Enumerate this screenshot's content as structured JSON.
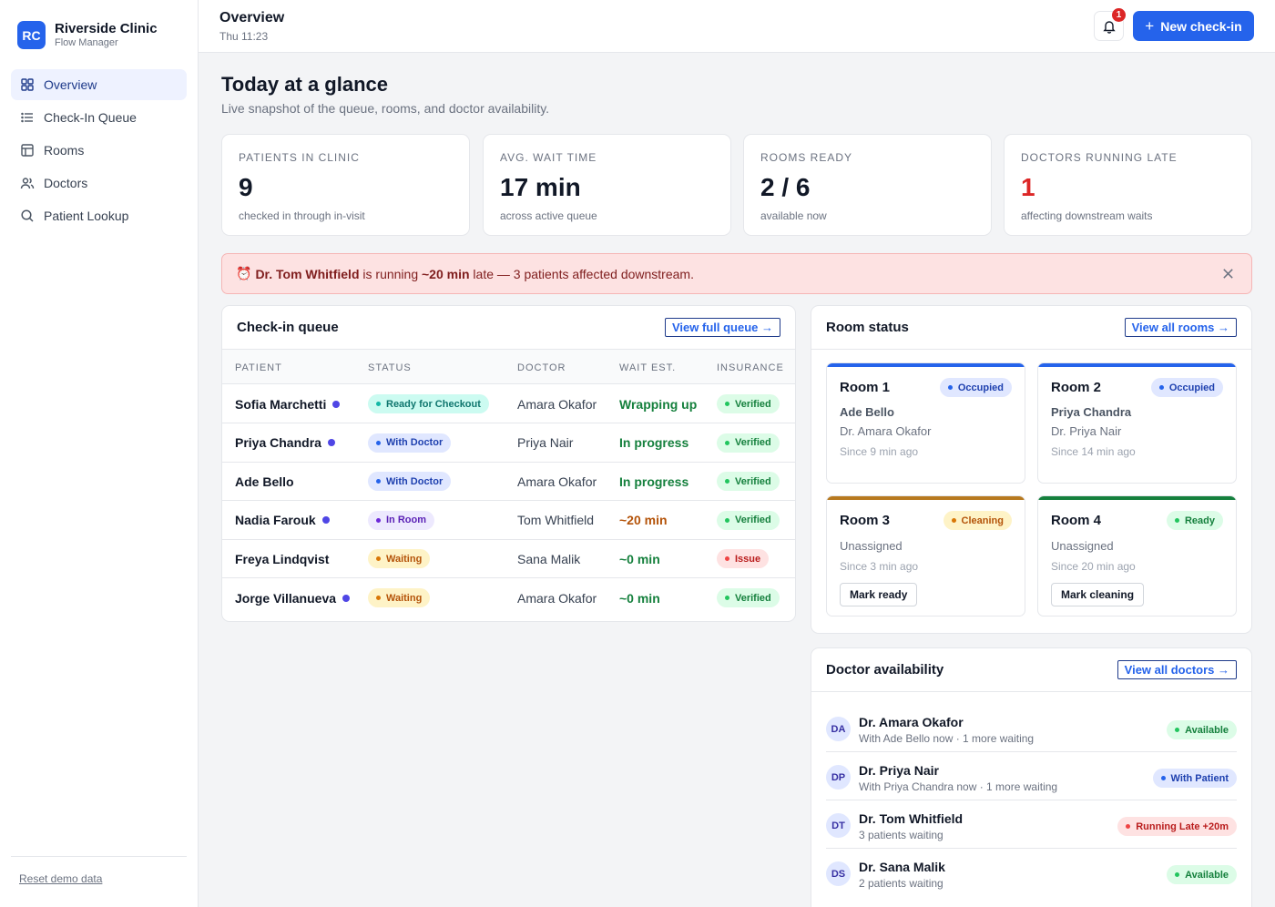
{
  "brand": {
    "initials": "RC",
    "name": "Riverside Clinic",
    "subtitle": "Flow Manager"
  },
  "nav": [
    {
      "label": "Overview",
      "icon": "grid-icon",
      "active": true
    },
    {
      "label": "Check-In Queue",
      "icon": "list-icon",
      "active": false
    },
    {
      "label": "Rooms",
      "icon": "layout-icon",
      "active": false
    },
    {
      "label": "Doctors",
      "icon": "users-icon",
      "active": false
    },
    {
      "label": "Patient Lookup",
      "icon": "search-icon",
      "active": false
    }
  ],
  "footer": {
    "reset_label": "Reset demo data"
  },
  "header": {
    "title": "Overview",
    "time": "Thu 11:23",
    "notification_count": "1",
    "new_checkin_label": "New check-in"
  },
  "page": {
    "title": "Today at a glance",
    "subtitle": "Live snapshot of the queue, rooms, and doctor availability."
  },
  "stats": [
    {
      "label": "Patients in clinic",
      "value": "9",
      "note": "checked in through in-visit"
    },
    {
      "label": "Avg. wait time",
      "value": "17 min",
      "note": "across active queue"
    },
    {
      "label": "Rooms ready",
      "value": "2 / 6",
      "note": "available now"
    },
    {
      "label": "Doctors running late",
      "value": "1",
      "note": "affecting downstream waits"
    }
  ],
  "alert": {
    "icon": "⏰",
    "doctor": "Dr. Tom Whitfield",
    "mid": " is running ",
    "delay": "~20 min",
    "rest": " late — 3 patients affected downstream."
  },
  "queue": {
    "title": "Check-in queue",
    "link": "View full queue →",
    "columns": [
      "PATIENT",
      "STATUS",
      "DOCTOR",
      "WAIT EST.",
      "INSURANCE"
    ],
    "rows": [
      {
        "patient": "Sofia Marchetti",
        "unread": true,
        "status": "Ready for Checkout",
        "status_kind": "teal",
        "doctor": "Amara Okafor",
        "wait": "Wrapping up",
        "wait_kind": "green",
        "insurance": "Verified",
        "ins_kind": "green"
      },
      {
        "patient": "Priya Chandra",
        "unread": true,
        "status": "With Doctor",
        "status_kind": "blue",
        "doctor": "Priya Nair",
        "wait": "In progress",
        "wait_kind": "green",
        "insurance": "Verified",
        "ins_kind": "green"
      },
      {
        "patient": "Ade Bello",
        "unread": false,
        "status": "With Doctor",
        "status_kind": "blue",
        "doctor": "Amara Okafor",
        "wait": "In progress",
        "wait_kind": "green",
        "insurance": "Verified",
        "ins_kind": "green"
      },
      {
        "patient": "Nadia Farouk",
        "unread": true,
        "status": "In Room",
        "status_kind": "indigo",
        "doctor": "Tom Whitfield",
        "wait": "~20 min",
        "wait_kind": "amber",
        "insurance": "Verified",
        "ins_kind": "green"
      },
      {
        "patient": "Freya Lindqvist",
        "unread": false,
        "status": "Waiting",
        "status_kind": "amber",
        "doctor": "Sana Malik",
        "wait": "~0 min",
        "wait_kind": "green",
        "insurance": "Issue",
        "ins_kind": "red"
      },
      {
        "patient": "Jorge Villanueva",
        "unread": true,
        "status": "Waiting",
        "status_kind": "amber",
        "doctor": "Amara Okafor",
        "wait": "~0 min",
        "wait_kind": "green",
        "insurance": "Verified",
        "ins_kind": "green"
      }
    ]
  },
  "rooms": {
    "title": "Room status",
    "link": "View all rooms →",
    "items": [
      {
        "name": "Room 1",
        "status": "Occupied",
        "kind": "blue",
        "patient": "Ade Bello",
        "doctor": "Dr. Amara Okafor",
        "since": "Since 9 min ago",
        "action": ""
      },
      {
        "name": "Room 2",
        "status": "Occupied",
        "kind": "blue",
        "patient": "Priya Chandra",
        "doctor": "Dr. Priya Nair",
        "since": "Since 14 min ago",
        "action": ""
      },
      {
        "name": "Room 3",
        "status": "Cleaning",
        "kind": "amber",
        "patient": "Unassigned",
        "doctor": "",
        "since": "Since 3 min ago",
        "action": "Mark ready"
      },
      {
        "name": "Room 4",
        "status": "Ready",
        "kind": "green",
        "patient": "Unassigned",
        "doctor": "",
        "since": "Since 20 min ago",
        "action": "Mark cleaning"
      }
    ]
  },
  "doctors": {
    "title": "Doctor availability",
    "link": "View all doctors →",
    "items": [
      {
        "initials": "DA",
        "name": "Dr. Amara Okafor",
        "detail": "With Ade Bello now · 1 more waiting",
        "badge": "Available",
        "kind": "green"
      },
      {
        "initials": "DP",
        "name": "Dr. Priya Nair",
        "detail": "With Priya Chandra now · 1 more waiting",
        "badge": "With Patient",
        "kind": "blue"
      },
      {
        "initials": "DT",
        "name": "Dr. Tom Whitfield",
        "detail": "3 patients waiting",
        "badge": "Running Late +20m",
        "kind": "red"
      },
      {
        "initials": "DS",
        "name": "Dr. Sana Malik",
        "detail": "2 patients waiting",
        "badge": "Available",
        "kind": "green"
      }
    ]
  },
  "colors": {
    "accent": "#2563eb",
    "teal": {
      "bg": "#ccfbf1",
      "fg": "#0f766e",
      "dot": "#14b8a6"
    },
    "blue": {
      "bg": "#e0e7ff",
      "fg": "#1e40af",
      "dot": "#2563eb"
    },
    "indigo": {
      "bg": "#ede9fe",
      "fg": "#5b21b6",
      "dot": "#6d28d9"
    },
    "amber": {
      "bg": "#fef3c7",
      "fg": "#b45309",
      "dot": "#d97706"
    },
    "green": {
      "bg": "#dcfce7",
      "fg": "#15803d",
      "dot": "#22c55e"
    },
    "red": {
      "bg": "#fee2e2",
      "fg": "#b91c1c",
      "dot": "#ef4444"
    }
  }
}
